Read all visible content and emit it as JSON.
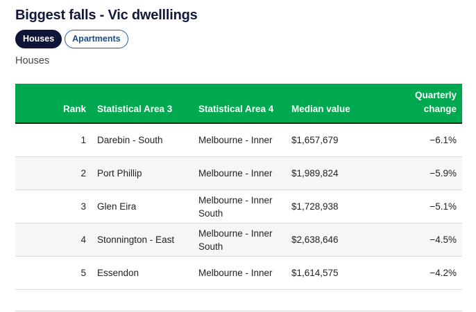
{
  "header": {
    "title": "Biggest falls - Vic dwelllings"
  },
  "tabs": [
    {
      "label": "Houses",
      "active": true
    },
    {
      "label": "Apartments",
      "active": false
    }
  ],
  "subtitle": "Houses",
  "table": {
    "columns": [
      "Rank",
      "Statistical Area 3",
      "Statistical Area 4",
      "Median value",
      "Quarterly change"
    ],
    "rows": [
      {
        "rank": "1",
        "sa3": "Darebin - South",
        "sa4": "Melbourne - Inner",
        "median": "$1,657,679",
        "change": "−6.1%"
      },
      {
        "rank": "2",
        "sa3": "Port Phillip",
        "sa4": "Melbourne - Inner",
        "median": "$1,989,824",
        "change": "−5.9%"
      },
      {
        "rank": "3",
        "sa3": "Glen Eira",
        "sa4": "Melbourne - Inner South",
        "median": "$1,728,938",
        "change": "−5.1%"
      },
      {
        "rank": "4",
        "sa3": "Stonnington - East",
        "sa4": "Melbourne - Inner South",
        "median": "$2,638,646",
        "change": "−4.5%"
      },
      {
        "rank": "5",
        "sa3": "Essendon",
        "sa4": "Melbourne - Inner",
        "median": "$1,614,575",
        "change": "−4.2%"
      }
    ]
  },
  "colors": {
    "header_green": "#00a84f",
    "active_tab": "#0e1537",
    "inactive_tab_border": "#2a5a96"
  }
}
